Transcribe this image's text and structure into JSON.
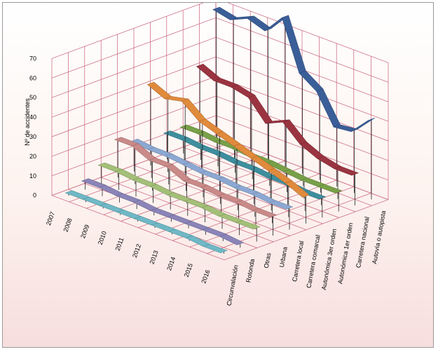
{
  "chart_data": {
    "type": "line",
    "subtype": "3d-ribbon",
    "title": "",
    "ylabel": "Nº de accidentes",
    "ylim": [
      0,
      70
    ],
    "y_ticks": [
      0,
      10,
      20,
      30,
      40,
      50,
      60,
      70
    ],
    "categories": [
      "2007",
      "2008",
      "2009",
      "2010",
      "2011",
      "2012",
      "2013",
      "2014",
      "2015",
      "2016"
    ],
    "grid": true,
    "legend": "none",
    "series": [
      {
        "name": "Circunvalación",
        "color": "#6fb8c6",
        "values": [
          2,
          2,
          2,
          2,
          2,
          2,
          2,
          2,
          1,
          1
        ]
      },
      {
        "name": "Rotonda",
        "color": "#8a84b8",
        "values": [
          5,
          5,
          4,
          4,
          3,
          3,
          3,
          3,
          3,
          2
        ]
      },
      {
        "name": "Otras",
        "color": "#a3bf78",
        "values": [
          10,
          10,
          9,
          9,
          8,
          8,
          8,
          7,
          7,
          7
        ]
      },
      {
        "name": "Urbana",
        "color": "#c98a88",
        "values": [
          20,
          20,
          16,
          16,
          12,
          12,
          11,
          11,
          10,
          10
        ]
      },
      {
        "name": "Carretera local",
        "color": "#8ca8d2",
        "values": [
          16,
          15,
          15,
          14,
          13,
          13,
          12,
          12,
          11,
          11
        ]
      },
      {
        "name": "Carretera comarcal",
        "color": "#e08a3c",
        "values": [
          42,
          38,
          40,
          33,
          30,
          27,
          24,
          21,
          18,
          14
        ]
      },
      {
        "name": "Autonómica 3er orden",
        "color": "#3e8e9e",
        "values": [
          14,
          14,
          13,
          13,
          12,
          12,
          11,
          11,
          10,
          10
        ]
      },
      {
        "name": "Autonómica 1er orden",
        "color": "#78a048",
        "values": [
          14,
          14,
          13,
          13,
          12,
          12,
          11,
          10,
          10,
          10
        ]
      },
      {
        "name": "Carretera nacional",
        "color": "#9a3440",
        "values": [
          42,
          38,
          38,
          36,
          26,
          30,
          22,
          18,
          16,
          16
        ]
      },
      {
        "name": "Autovía o autopista",
        "color": "#3a5e98",
        "values": [
          68,
          66,
          70,
          67,
          77,
          52,
          46,
          31,
          32,
          41
        ]
      }
    ]
  }
}
